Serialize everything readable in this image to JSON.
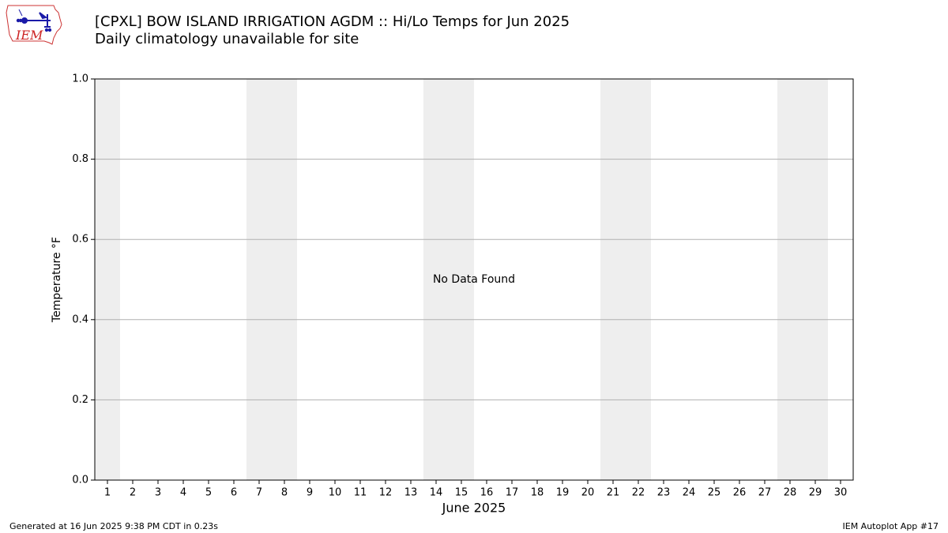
{
  "header": {
    "title": "[CPXL] BOW ISLAND IRRIGATION AGDM :: Hi/Lo Temps for Jun 2025",
    "subtitle": "Daily climatology unavailable for site",
    "logo_text": "IEM"
  },
  "footer": {
    "generated": "Generated at 16 Jun 2025 9:38 PM CDT in 0.23s",
    "app": "IEM Autoplot App #17"
  },
  "chart_data": {
    "type": "line",
    "title": "[CPXL] BOW ISLAND IRRIGATION AGDM :: Hi/Lo Temps for Jun 2025",
    "subtitle": "Daily climatology unavailable for site",
    "xlabel": "June 2025",
    "ylabel": "Temperature °F",
    "x": [],
    "series": [],
    "xlim": [
      0.5,
      30.5
    ],
    "ylim": [
      0.0,
      1.0
    ],
    "xticks": [
      1,
      2,
      3,
      4,
      5,
      6,
      7,
      8,
      9,
      10,
      11,
      12,
      13,
      14,
      15,
      16,
      17,
      18,
      19,
      20,
      21,
      22,
      23,
      24,
      25,
      26,
      27,
      28,
      29,
      30
    ],
    "yticks": [
      0.0,
      0.2,
      0.4,
      0.6,
      0.8,
      1.0
    ],
    "ytick_labels": [
      "0.0",
      "0.2",
      "0.4",
      "0.6",
      "0.8",
      "1.0"
    ],
    "weekend_shading_days": [
      [
        0.5,
        1.5
      ],
      [
        6.5,
        8.5
      ],
      [
        13.5,
        15.5
      ],
      [
        20.5,
        22.5
      ],
      [
        27.5,
        29.5
      ]
    ],
    "annotation": "No Data Found",
    "annotation_at": [
      15.5,
      0.5
    ],
    "grid": "horizontal",
    "colors": {
      "shade": "#eeeeee",
      "grid": "#b0b0b0",
      "axis": "#000000"
    }
  }
}
